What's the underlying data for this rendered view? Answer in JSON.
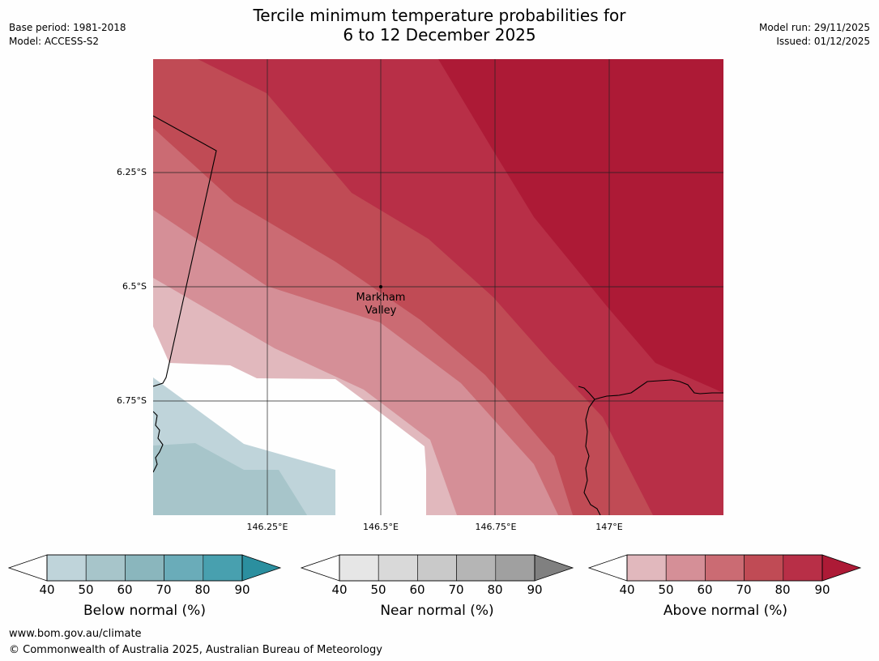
{
  "header": {
    "title_line1": "Tercile minimum temperature probabilities for",
    "title_line2": "6 to 12 December 2025",
    "base_period": "Base period: 1981-2018",
    "model": "Model: ACCESS-S2",
    "model_run": "Model run: 29/11/2025",
    "issued": "Issued: 01/12/2025"
  },
  "map": {
    "lat_labels": [
      "6.25°S",
      "6.5°S",
      "6.75°S"
    ],
    "lon_labels": [
      "146.25°E",
      "146.5°E",
      "146.75°E",
      "147°E"
    ],
    "place_line1": "Markham",
    "place_line2": "Valley"
  },
  "legend": {
    "below": {
      "title": "Below normal (%)",
      "ticks": [
        "40",
        "50",
        "60",
        "70",
        "80",
        "90"
      ],
      "colors": [
        "#bfd4da",
        "#a7c5ca",
        "#8ab6bd",
        "#6aacb9",
        "#48a0af",
        "#2b8f9f"
      ]
    },
    "near": {
      "title": "Near normal (%)",
      "ticks": [
        "40",
        "50",
        "60",
        "70",
        "80",
        "90"
      ],
      "colors": [
        "#e6e6e6",
        "#d9d9d9",
        "#c9c9c9",
        "#b5b5b5",
        "#a0a0a0",
        "#808080"
      ]
    },
    "above": {
      "title": "Above normal (%)",
      "ticks": [
        "40",
        "50",
        "60",
        "70",
        "80",
        "90"
      ],
      "colors": [
        "#e1b8bd",
        "#d58f97",
        "#cb6b73",
        "#c04b55",
        "#b82f47",
        "#ad1a36"
      ]
    }
  },
  "footer": {
    "url": "www.bom.gov.au/climate",
    "copyright": "© Commonwealth of Australia 2025, Australian Bureau of Meteorology"
  }
}
